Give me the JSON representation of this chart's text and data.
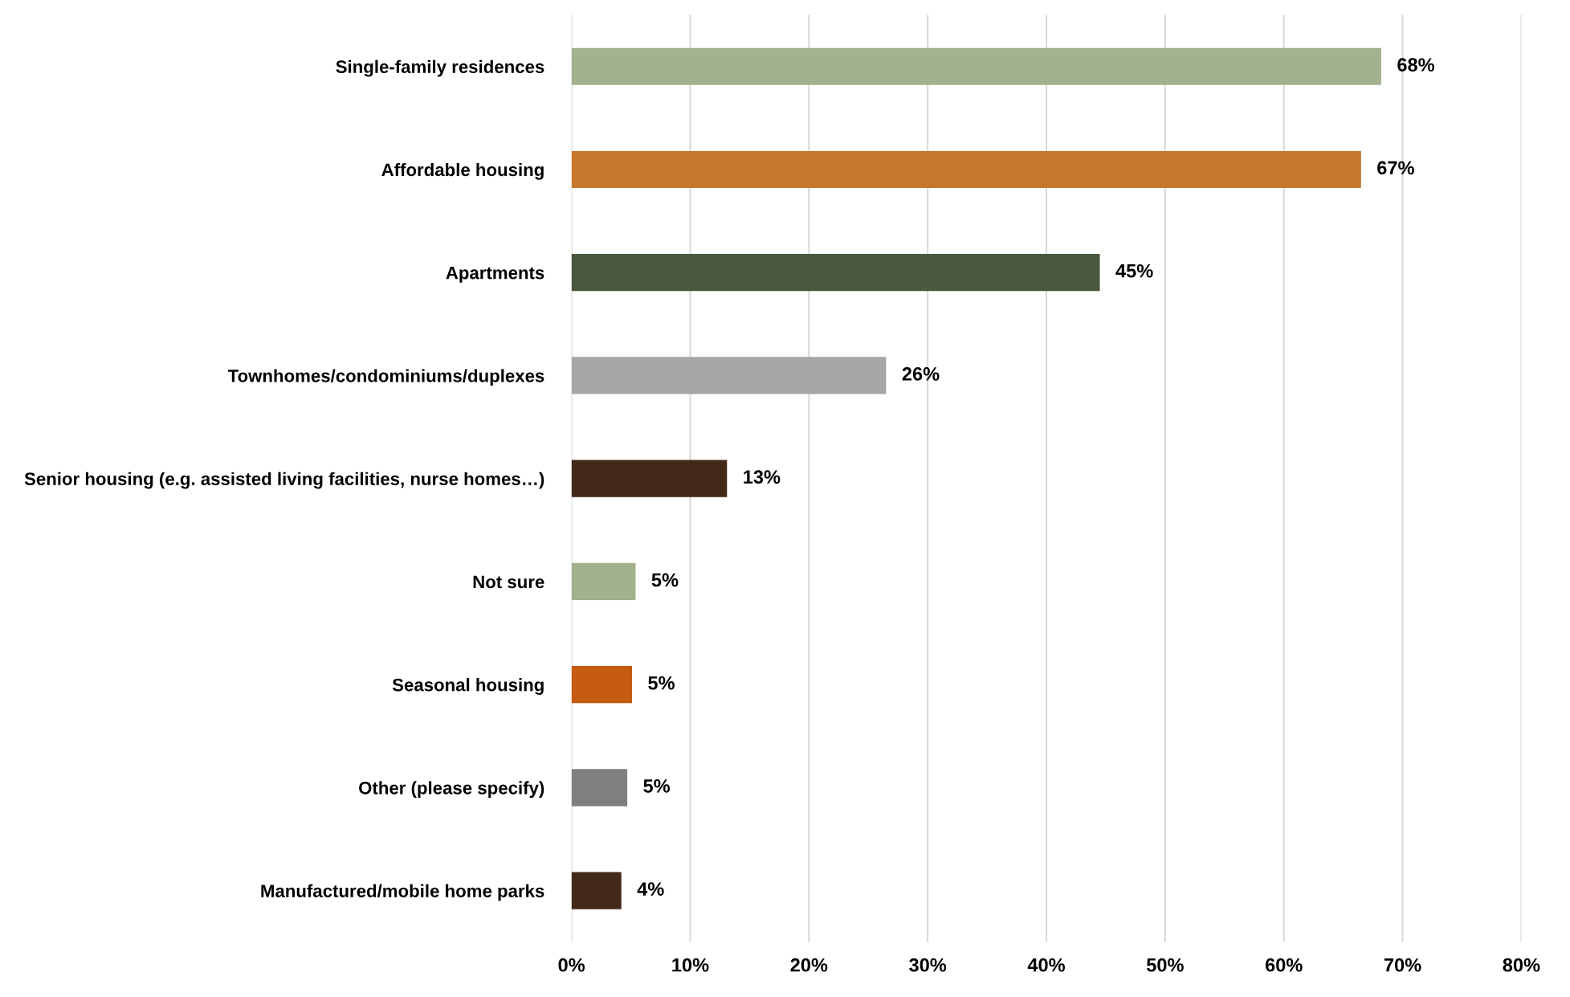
{
  "chart_data": {
    "type": "bar",
    "orientation": "horizontal",
    "categories": [
      "Single-family residences",
      "Affordable housing",
      "Apartments",
      "Townhomes/condominiums/duplexes",
      "Senior housing (e.g. assisted living facilities, nurse homes…)",
      "Not sure",
      "Seasonal housing",
      "Other (please specify)",
      "Manufactured/mobile home parks"
    ],
    "values": [
      68.2,
      66.5,
      44.5,
      26.5,
      13.1,
      5.4,
      5.1,
      4.7,
      4.2
    ],
    "value_labels": [
      "68%",
      "67%",
      "45%",
      "26%",
      "13%",
      "5%",
      "5%",
      "5%",
      "4%"
    ],
    "colors": [
      "#a3b18f",
      "#c5782c",
      "#4a583e",
      "#a6a6a6",
      "#432918",
      "#a3b18f",
      "#c55a11",
      "#7f7f7f",
      "#432918"
    ],
    "xlim": [
      0,
      80
    ],
    "xticks": [
      {
        "value": 0,
        "label": "0%"
      },
      {
        "value": 10,
        "label": "10%"
      },
      {
        "value": 20,
        "label": "20%"
      },
      {
        "value": 30,
        "label": "30%"
      },
      {
        "value": 40,
        "label": "40%"
      },
      {
        "value": 50,
        "label": "50%"
      },
      {
        "value": 60,
        "label": "60%"
      },
      {
        "value": 70,
        "label": "70%"
      },
      {
        "value": 80,
        "label": "80%"
      }
    ],
    "grid": "x"
  }
}
